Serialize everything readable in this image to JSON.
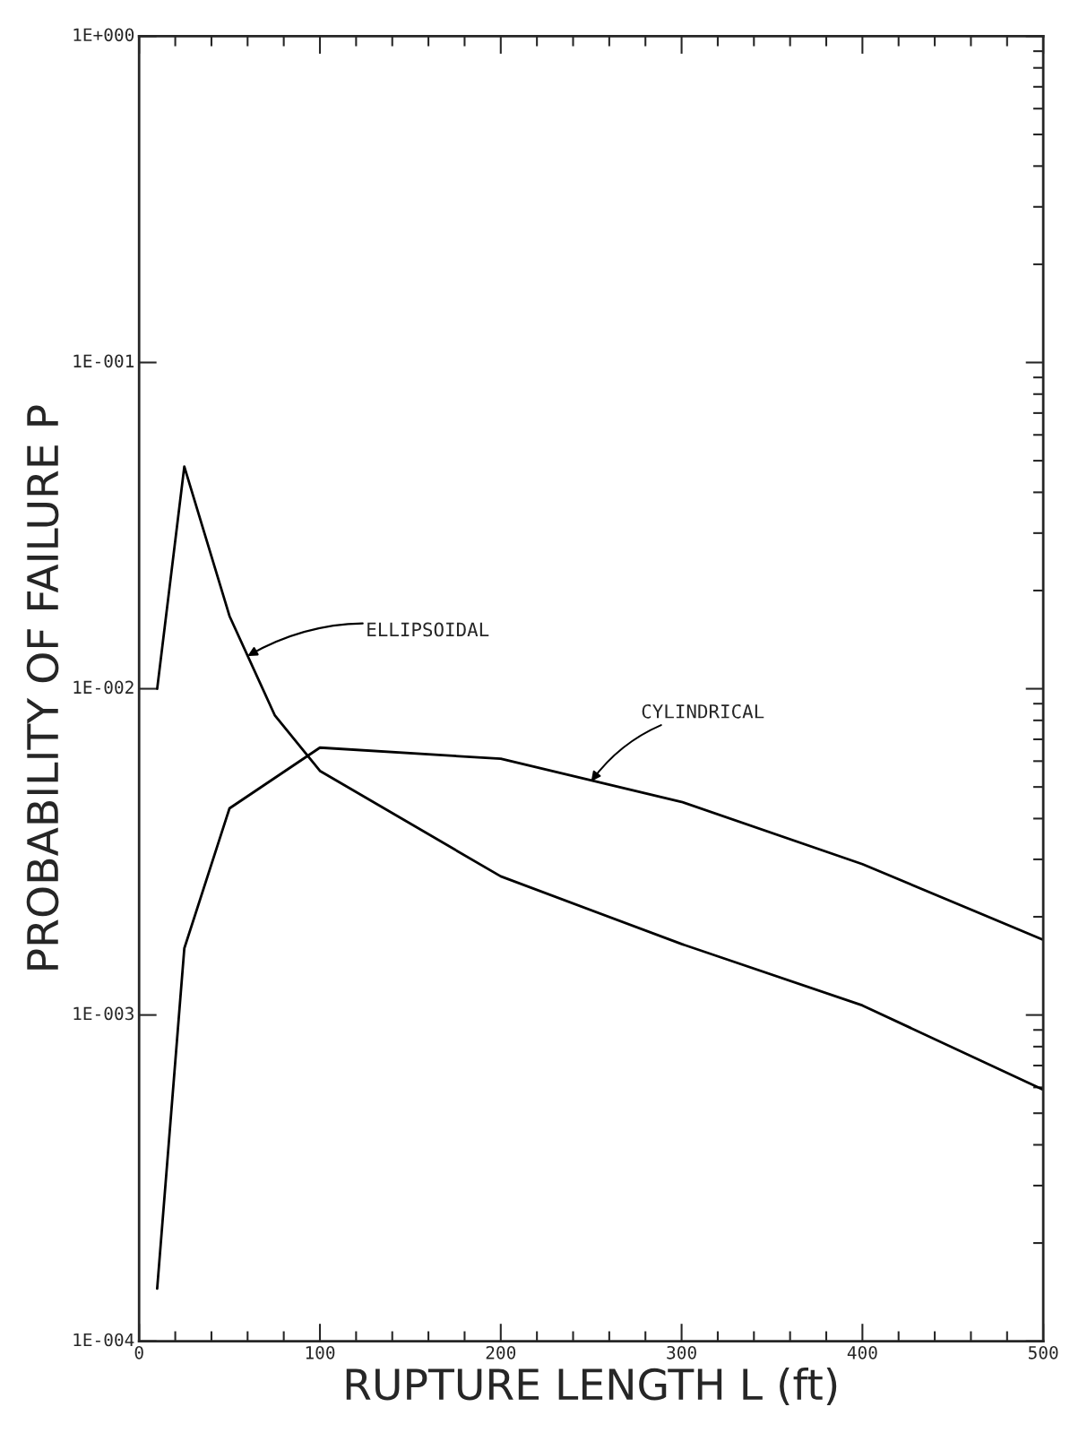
{
  "chart_data": {
    "type": "line",
    "xlabel": "RUPTURE LENGTH L (ft)",
    "ylabel": "PROBABILITY OF FAILURE P",
    "series": [
      {
        "color": "#000000",
        "x": [
          10,
          25,
          50,
          75,
          100,
          200,
          300,
          400,
          500
        ],
        "values": [
          0.01,
          0.048,
          0.0167,
          0.0083,
          0.0056,
          0.00266,
          0.00165,
          0.00107,
          0.00059
        ]
      },
      {
        "color": "#000000",
        "x": [
          10,
          25,
          50,
          100,
          200,
          300,
          400,
          500
        ],
        "values": [
          0.000145,
          0.0016,
          0.0043,
          0.0066,
          0.0061,
          0.0045,
          0.0029,
          0.0017
        ]
      }
    ],
    "log": "y",
    "xlim": [
      0,
      500
    ],
    "ylim": [
      0.0001,
      1
    ],
    "xticks": [
      0,
      100,
      200,
      300,
      400,
      500
    ],
    "yticks": [
      {
        "value": 0.0001,
        "label": "1E-004"
      },
      {
        "value": 0.001,
        "label": "1E-003"
      },
      {
        "value": 0.01,
        "label": "1E-002"
      },
      {
        "value": 0.1,
        "label": "1E-001"
      },
      {
        "value": 1,
        "label": "1E+000"
      }
    ],
    "annotations": [
      {
        "text": "ELLIPSOIDAL",
        "x": 60,
        "y": 0.0126
      },
      {
        "text": "CYLINDRICAL",
        "x": 250,
        "y": 0.0052
      }
    ],
    "grid": false,
    "legend": false,
    "marker": "none",
    "line_style": "solid"
  }
}
